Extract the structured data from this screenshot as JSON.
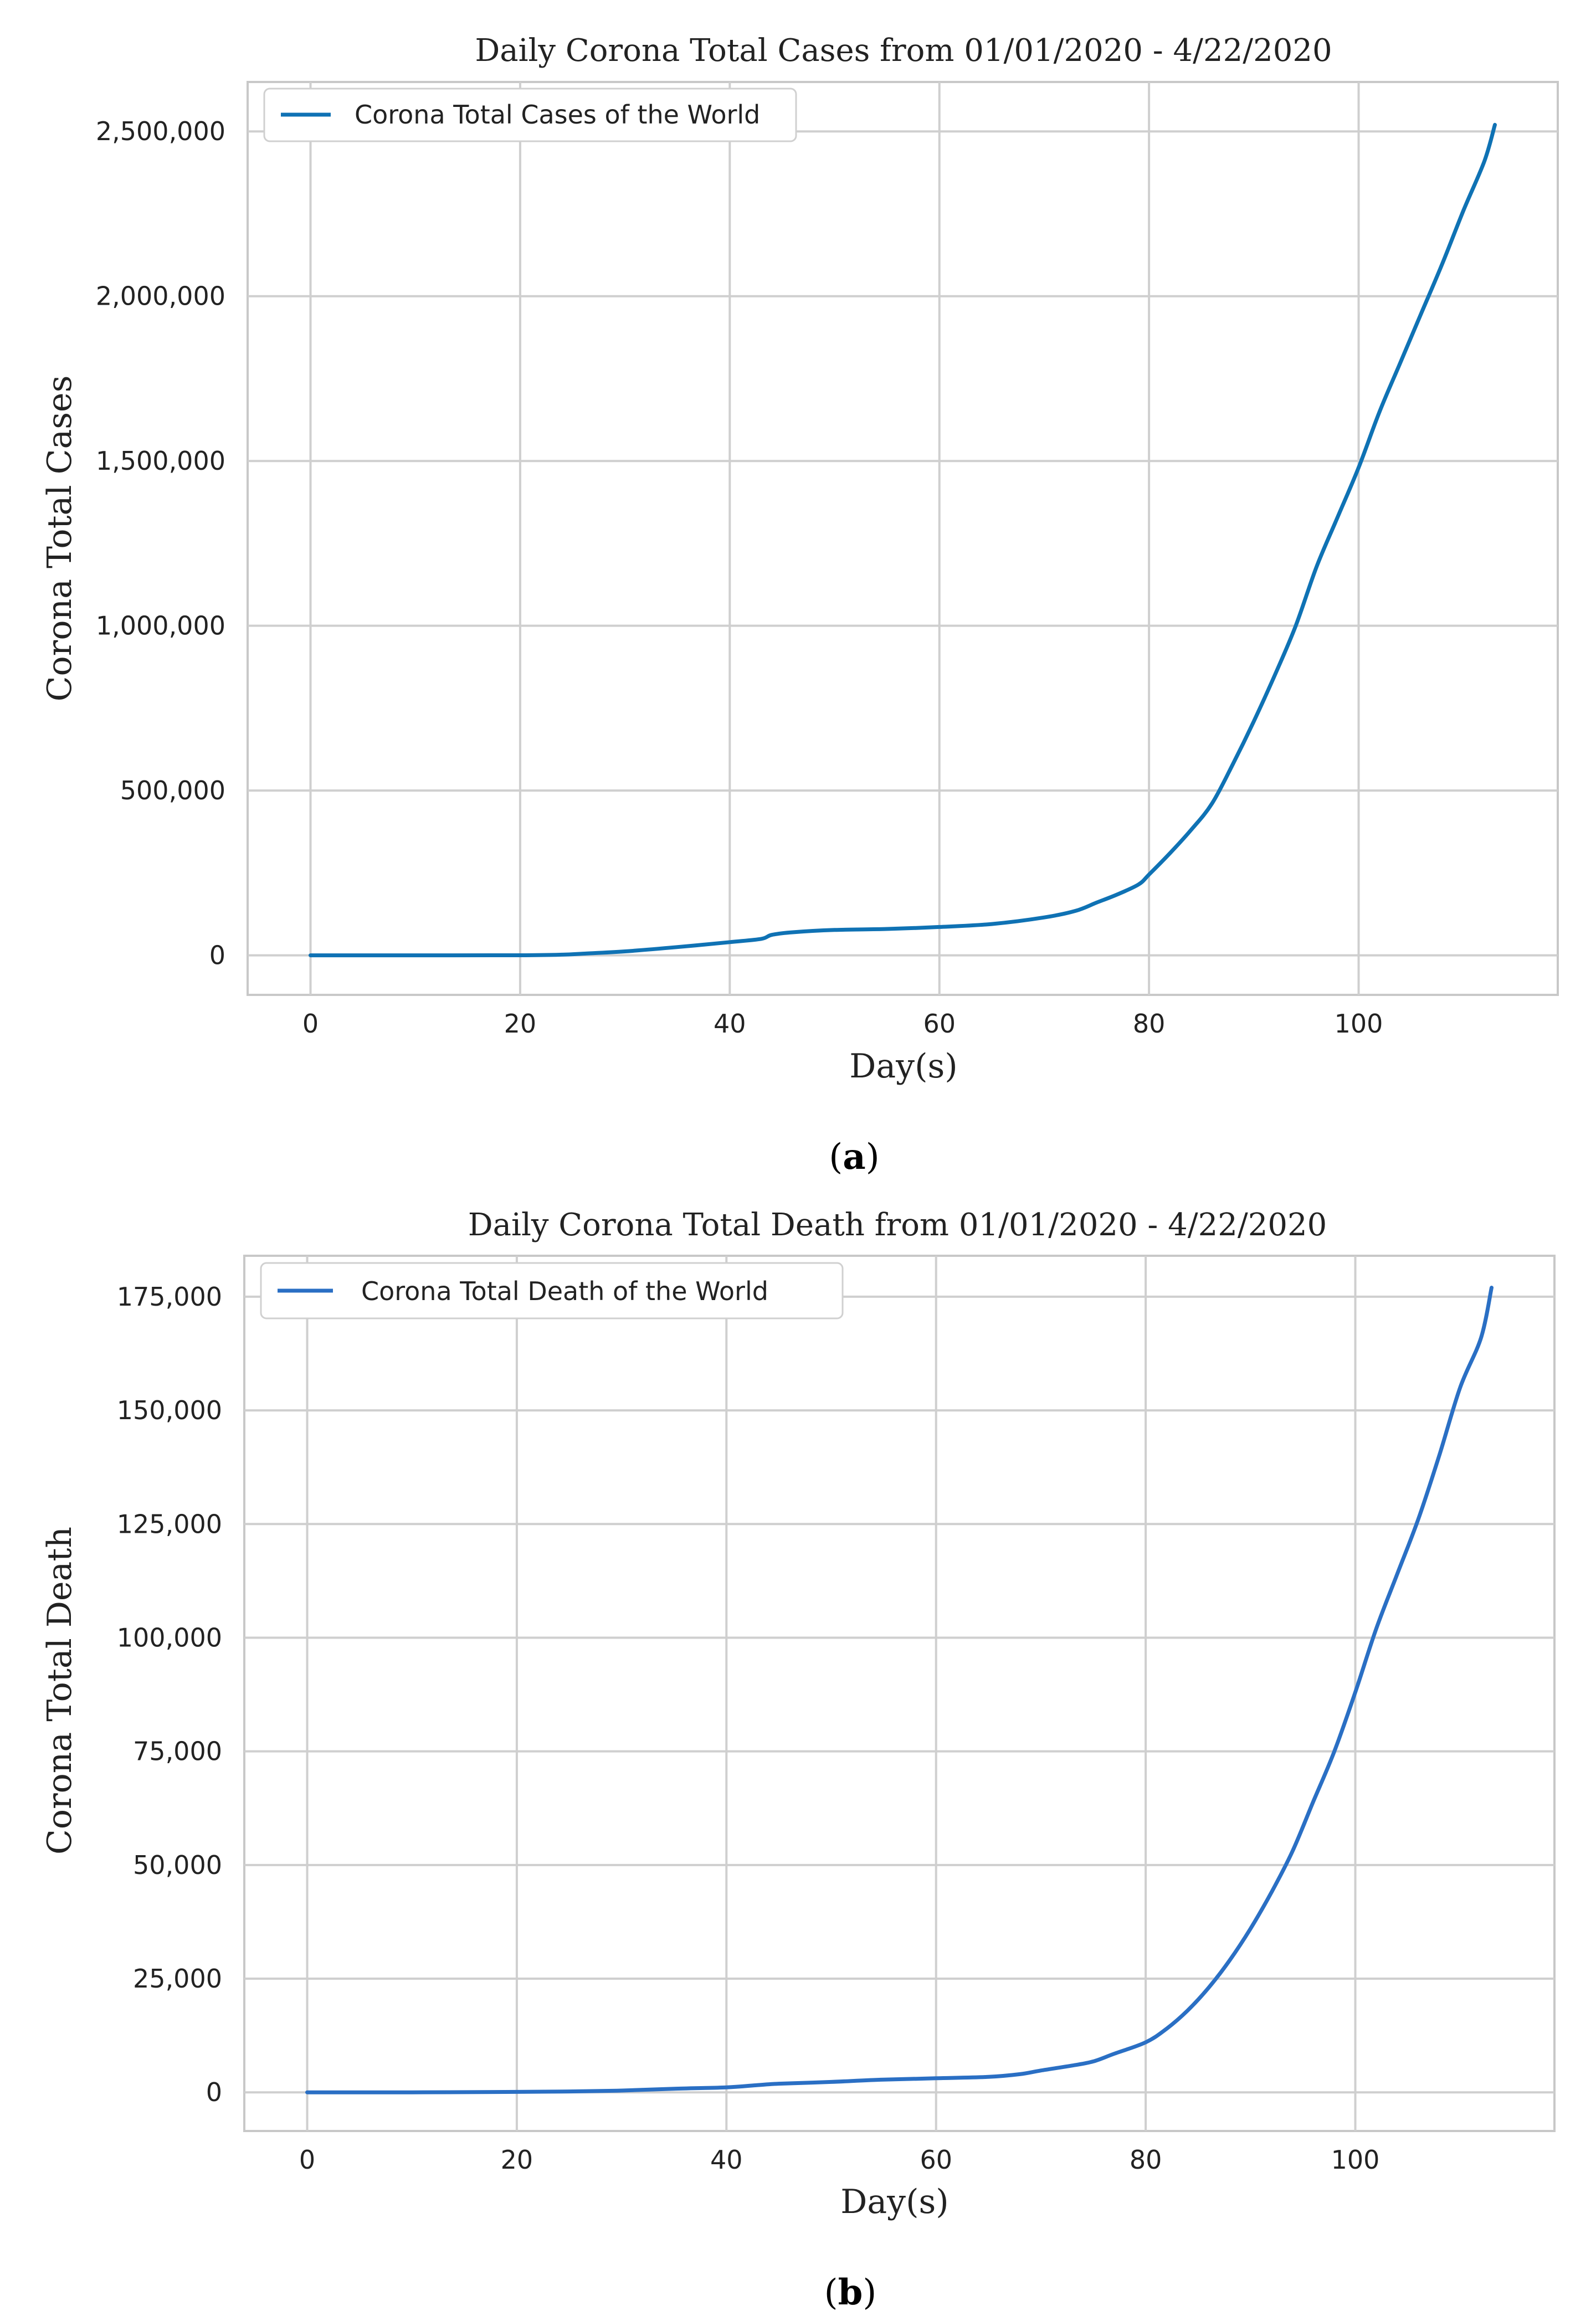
{
  "chart_data": [
    {
      "type": "line",
      "title": "Daily Corona Total Cases from 01/01/2020 - 4/22/2020",
      "xlabel": "Day(s)",
      "ylabel": "Corona Total Cases",
      "xlim": [
        -6,
        119
      ],
      "ylim": [
        -120000,
        2650000
      ],
      "xticks": [
        0,
        20,
        40,
        60,
        80,
        100
      ],
      "xtick_labels": [
        "0",
        "20",
        "40",
        "60",
        "80",
        "100"
      ],
      "yticks": [
        0,
        500000,
        1000000,
        1500000,
        2000000,
        2500000
      ],
      "ytick_labels": [
        "0",
        "500,000",
        "1,000,000",
        "1,500,000",
        "2,000,000",
        "2,500,000"
      ],
      "grid": true,
      "legend_position": "top-left",
      "caption_label": "a",
      "series": [
        {
          "name": "Corona Total Cases of the World",
          "color": "#0f72b4",
          "x": [
            0,
            10,
            20,
            24,
            26,
            30,
            35,
            40,
            43,
            44,
            46,
            50,
            55,
            60,
            65,
            70,
            73,
            75,
            77,
            79,
            80,
            82,
            84,
            86,
            88,
            90,
            92,
            94,
            96,
            98,
            100,
            102,
            104,
            106,
            108,
            110,
            112,
            113
          ],
          "y": [
            0,
            0,
            200,
            2000,
            5000,
            12000,
            25000,
            40000,
            50000,
            62000,
            70000,
            77000,
            80000,
            86000,
            95000,
            115000,
            135000,
            160000,
            185000,
            215000,
            245000,
            310000,
            380000,
            460000,
            580000,
            710000,
            850000,
            1000000,
            1180000,
            1330000,
            1480000,
            1650000,
            1800000,
            1950000,
            2100000,
            2260000,
            2410000,
            2520000
          ]
        }
      ]
    },
    {
      "type": "line",
      "title": "Daily Corona Total Death from 01/01/2020 - 4/22/2020",
      "xlabel": "Day(s)",
      "ylabel": "Corona Total Death",
      "xlim": [
        -6,
        119
      ],
      "ylim": [
        -8500,
        184000
      ],
      "xticks": [
        0,
        20,
        40,
        60,
        80,
        100
      ],
      "xtick_labels": [
        "0",
        "20",
        "40",
        "60",
        "80",
        "100"
      ],
      "yticks": [
        0,
        25000,
        50000,
        75000,
        100000,
        125000,
        150000,
        175000
      ],
      "ytick_labels": [
        "0",
        "25,000",
        "50,000",
        "75,000",
        "100,000",
        "125,000",
        "150,000",
        "175,000"
      ],
      "grid": true,
      "legend_position": "top-left",
      "caption_label": "b",
      "series": [
        {
          "name": "Corona Total Death of the World",
          "color": "#2a6fc4",
          "x": [
            0,
            10,
            20,
            25,
            30,
            35,
            40,
            43,
            45,
            50,
            55,
            60,
            65,
            68,
            70,
            73,
            75,
            77,
            80,
            82,
            84,
            86,
            88,
            90,
            92,
            94,
            96,
            98,
            100,
            102,
            104,
            106,
            108,
            110,
            112,
            113
          ],
          "y": [
            0,
            0,
            100,
            200,
            400,
            800,
            1100,
            1600,
            1900,
            2300,
            2800,
            3100,
            3400,
            4000,
            4800,
            5900,
            6800,
            8500,
            11000,
            14000,
            18000,
            23000,
            29000,
            36000,
            44000,
            53000,
            64000,
            75000,
            88000,
            102000,
            114000,
            126000,
            140000,
            155000,
            166000,
            177000
          ]
        }
      ]
    }
  ],
  "captions": {
    "open": "(",
    "close": ")"
  }
}
